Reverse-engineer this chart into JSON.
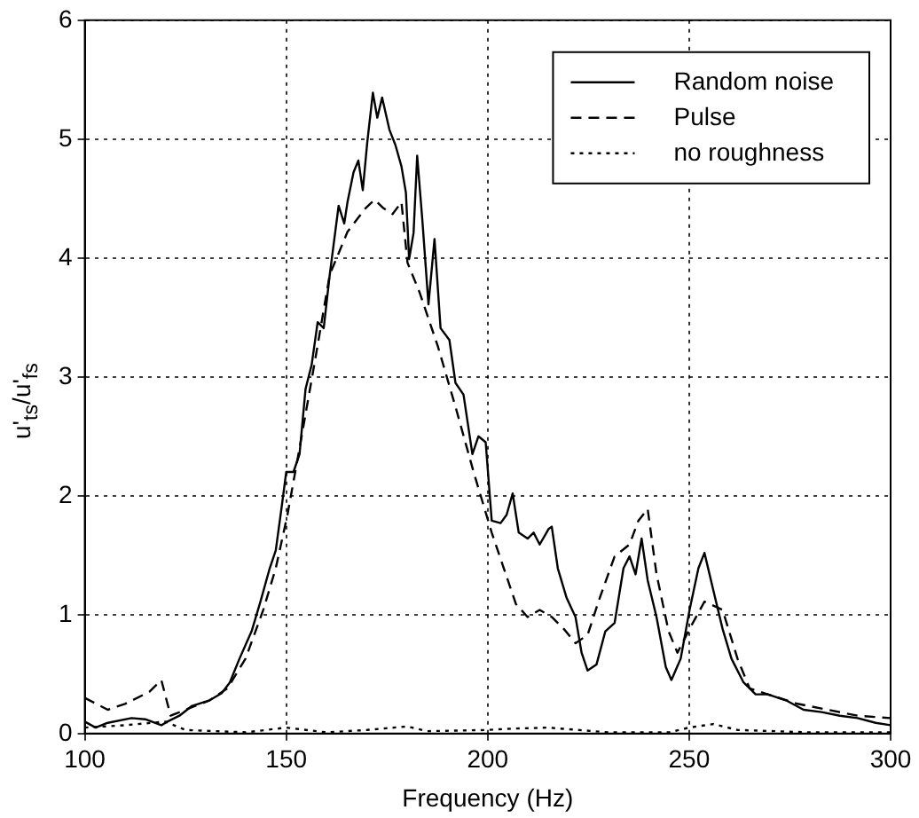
{
  "chart_data": {
    "type": "line",
    "xlabel": "Frequency (Hz)",
    "ylabel": "u'$_{ts}$/u'$_{fs}$",
    "xlim": [
      100,
      300
    ],
    "xticks": [
      100,
      150,
      200,
      250,
      300
    ],
    "ylim": [
      0,
      6
    ],
    "yticks": [
      0,
      1,
      2,
      3,
      4,
      5,
      6
    ],
    "grid": true,
    "legend": "top right",
    "marker": "none",
    "series": [
      {
        "name": "Random noise",
        "color": "#000000",
        "line_style": "solid",
        "x": [
          100,
          102.7,
          105.7,
          111.6,
          115,
          119,
          120.5,
          123.5,
          126.5,
          131,
          134,
          136,
          138.4,
          141.4,
          143.6,
          145.9,
          147.4,
          148.8,
          150,
          151.8,
          153.3,
          154.8,
          156.3,
          157.8,
          159.3,
          160.8,
          163,
          164.4,
          165.2,
          166.7,
          167.9,
          169,
          170.1,
          171.5,
          172.6,
          173.8,
          175.6,
          177.1,
          178.6,
          179.7,
          180.5,
          181.6,
          182.5,
          183.8,
          185.3,
          186.8,
          188.3,
          190.5,
          192,
          194,
          196.2,
          197.7,
          199.5,
          201,
          203.2,
          204.7,
          206.2,
          207.7,
          209.9,
          211.4,
          212.9,
          215.1,
          215.9,
          217.4,
          219.6,
          221.8,
          223.3,
          224.8,
          227,
          229.2,
          231.5,
          233.7,
          235.2,
          236.7,
          238.2,
          239.7,
          241.9,
          244.2,
          245.6,
          247.9,
          250.1,
          252.3,
          253.8,
          256.1,
          258.3,
          260.5,
          263.5,
          266.5,
          269.5,
          274,
          278.4,
          282.9,
          287.4,
          291.8,
          296.3,
          300
        ],
        "values": [
          0.1,
          0.05,
          0.09,
          0.13,
          0.12,
          0.07,
          0.1,
          0.15,
          0.23,
          0.28,
          0.34,
          0.43,
          0.63,
          0.86,
          1.11,
          1.39,
          1.54,
          1.89,
          2.2,
          2.2,
          2.35,
          2.9,
          3.1,
          3.46,
          3.41,
          3.86,
          4.44,
          4.29,
          4.47,
          4.72,
          4.82,
          4.57,
          4.97,
          5.39,
          5.18,
          5.35,
          5.08,
          4.95,
          4.77,
          4.55,
          3.99,
          4.21,
          4.86,
          4.31,
          3.61,
          4.16,
          3.41,
          3.31,
          2.95,
          2.85,
          2.35,
          2.5,
          2.45,
          1.79,
          1.77,
          1.84,
          2.02,
          1.69,
          1.64,
          1.69,
          1.59,
          1.72,
          1.74,
          1.39,
          1.14,
          0.98,
          0.68,
          0.53,
          0.58,
          0.86,
          0.93,
          1.39,
          1.49,
          1.34,
          1.64,
          1.29,
          0.98,
          0.56,
          0.45,
          0.63,
          1.04,
          1.39,
          1.52,
          1.19,
          0.88,
          0.63,
          0.43,
          0.33,
          0.33,
          0.28,
          0.2,
          0.18,
          0.15,
          0.13,
          0.09,
          0.07
        ]
      },
      {
        "name": "Pulse",
        "color": "#000000",
        "line_style": "dashed",
        "x": [
          100,
          105.7,
          110,
          116,
          119,
          121.3,
          125,
          131,
          135.4,
          139.9,
          144.3,
          147.4,
          150.3,
          153.3,
          157,
          160.8,
          165.2,
          169.7,
          171.9,
          174.1,
          176.4,
          178.6,
          180.1,
          183.1,
          187.6,
          192,
          196.5,
          201,
          204,
          207,
          209.9,
          212.9,
          215.9,
          218.9,
          221.8,
          224.8,
          227.8,
          231.5,
          235.2,
          237.4,
          239.7,
          241.9,
          244.9,
          247.1,
          250.1,
          253.8,
          258.3,
          262,
          265,
          269.5,
          276.9,
          284.4,
          291.8,
          300
        ],
        "values": [
          0.3,
          0.2,
          0.25,
          0.35,
          0.45,
          0.15,
          0.2,
          0.28,
          0.38,
          0.63,
          1.04,
          1.39,
          1.84,
          2.4,
          3.11,
          3.86,
          4.22,
          4.42,
          4.49,
          4.42,
          4.37,
          4.47,
          3.96,
          3.71,
          3.26,
          2.75,
          2.2,
          1.69,
          1.39,
          1.09,
          0.98,
          1.04,
          0.98,
          0.88,
          0.76,
          0.83,
          1.14,
          1.49,
          1.59,
          1.79,
          1.89,
          1.34,
          0.86,
          0.68,
          0.88,
          1.11,
          1.04,
          0.63,
          0.38,
          0.33,
          0.25,
          0.2,
          0.15,
          0.13
        ]
      },
      {
        "name": "no roughness",
        "color": "#000000",
        "line_style": "dotted",
        "x": [
          100,
          110,
          120,
          125,
          140,
          150,
          160,
          170,
          180,
          185,
          200,
          205,
          215,
          230,
          245,
          250,
          256,
          262,
          280,
          300
        ],
        "values": [
          0.05,
          0.07,
          0.1,
          0.03,
          0.01,
          0.05,
          0.01,
          0.03,
          0.06,
          0.02,
          0.03,
          0.04,
          0.05,
          0.01,
          0.01,
          0.05,
          0.08,
          0.03,
          0.01,
          0.01
        ]
      }
    ]
  }
}
